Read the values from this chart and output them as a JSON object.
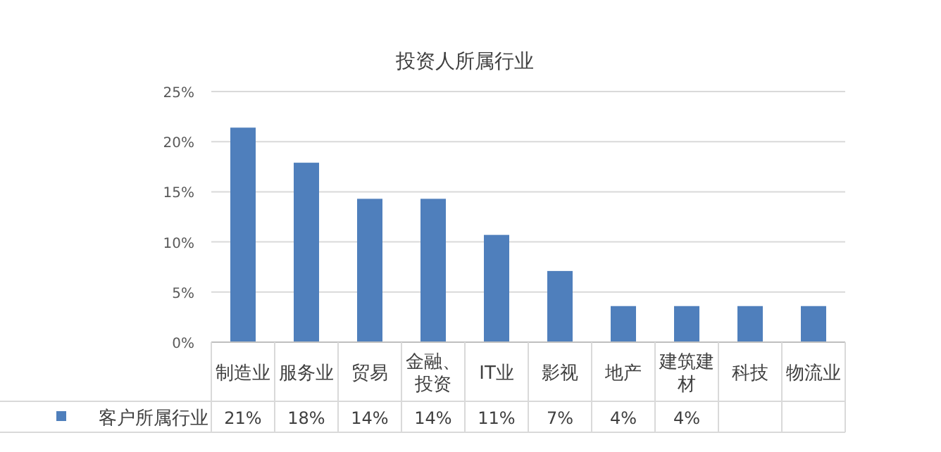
{
  "chart_data": {
    "type": "bar",
    "title": "投资人所属行业",
    "categories": [
      "制造业",
      "服务业",
      "贸易",
      "金融、投资",
      "IT业",
      "影视",
      "地产",
      "建筑建材",
      "科技",
      "物流业"
    ],
    "series": [
      {
        "name": "客户所属行业",
        "color": "#4f7fbc",
        "values": [
          21.4,
          17.9,
          14.3,
          14.3,
          10.7,
          7.1,
          3.6,
          3.6,
          3.6,
          3.6
        ],
        "value_labels": [
          "21%",
          "18%",
          "14%",
          "14%",
          "11%",
          "7%",
          "4%",
          "4%",
          null,
          null
        ]
      }
    ],
    "ylim": [
      0,
      25
    ],
    "yticks": [
      {
        "value": 0,
        "label": "0%"
      },
      {
        "value": 5,
        "label": "5%"
      },
      {
        "value": 10,
        "label": "10%"
      },
      {
        "value": 15,
        "label": "15%"
      },
      {
        "value": 20,
        "label": "20%"
      },
      {
        "value": 25,
        "label": "25%"
      }
    ],
    "grid": "y",
    "legend": "bottom left"
  }
}
